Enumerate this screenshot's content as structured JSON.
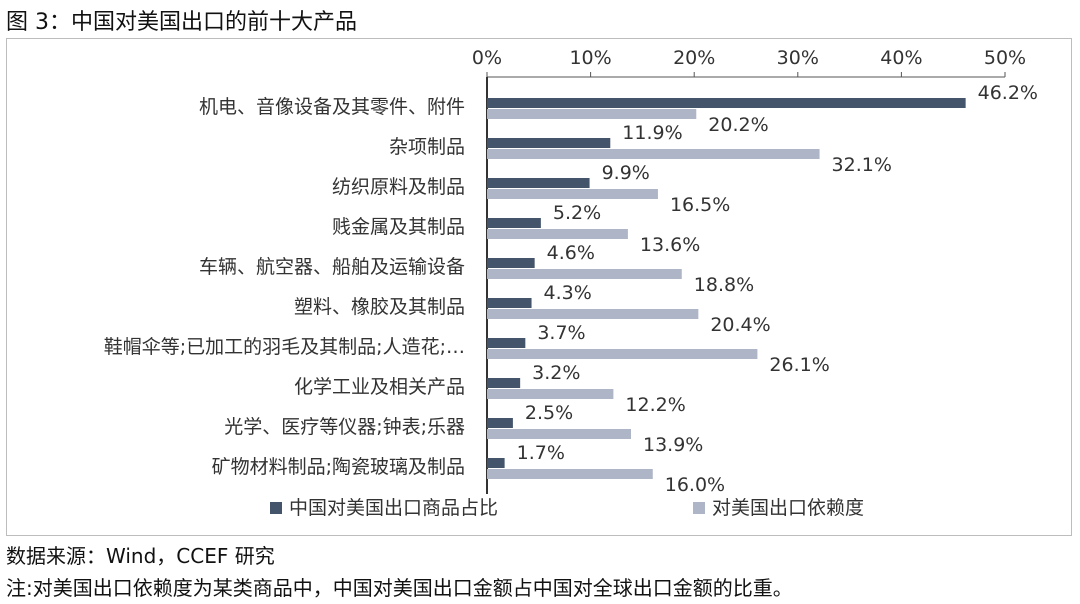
{
  "figure": {
    "title": "图 3：中国对美国出口的前十大产品",
    "source": "数据来源：Wind，CCEF 研究",
    "note": "注:对美国出口依赖度为某类商品中，中国对美国出口金额占中国对全球出口金额的比重。"
  },
  "chart_data": {
    "type": "bar",
    "orientation": "horizontal",
    "categories": [
      "机电、音像设备及其零件、附件",
      "杂项制品",
      "纺织原料及制品",
      "贱金属及其制品",
      "车辆、航空器、船舶及运输设备",
      "塑料、橡胶及其制品",
      "鞋帽伞等;已加工的羽毛及其制品;人造花;…",
      "化学工业及相关产品",
      "光学、医疗等仪器;钟表;乐器",
      "矿物材料制品;陶瓷玻璃及制品"
    ],
    "series": [
      {
        "name": "中国对美国出口商品占比",
        "values": [
          46.2,
          11.9,
          9.9,
          5.2,
          4.6,
          4.3,
          3.7,
          3.2,
          2.5,
          1.7
        ],
        "labels": [
          "46.2%",
          "11.9%",
          "9.9%",
          "5.2%",
          "4.6%",
          "4.3%",
          "3.7%",
          "3.2%",
          "2.5%",
          "1.7%"
        ],
        "color": "#44546a"
      },
      {
        "name": "对美国出口依赖度",
        "values": [
          20.2,
          32.1,
          16.5,
          13.6,
          18.8,
          20.4,
          26.1,
          12.2,
          13.9,
          16.0
        ],
        "labels": [
          "20.2%",
          "32.1%",
          "16.5%",
          "13.6%",
          "18.8%",
          "20.4%",
          "26.1%",
          "12.2%",
          "13.9%",
          "16.0%"
        ],
        "color": "#adb5c7"
      }
    ],
    "xticks": [
      "0%",
      "10%",
      "20%",
      "30%",
      "40%",
      "50%"
    ],
    "xlim": [
      0,
      50
    ],
    "axis_position": "top",
    "legend_position": "bottom",
    "grid": false
  }
}
